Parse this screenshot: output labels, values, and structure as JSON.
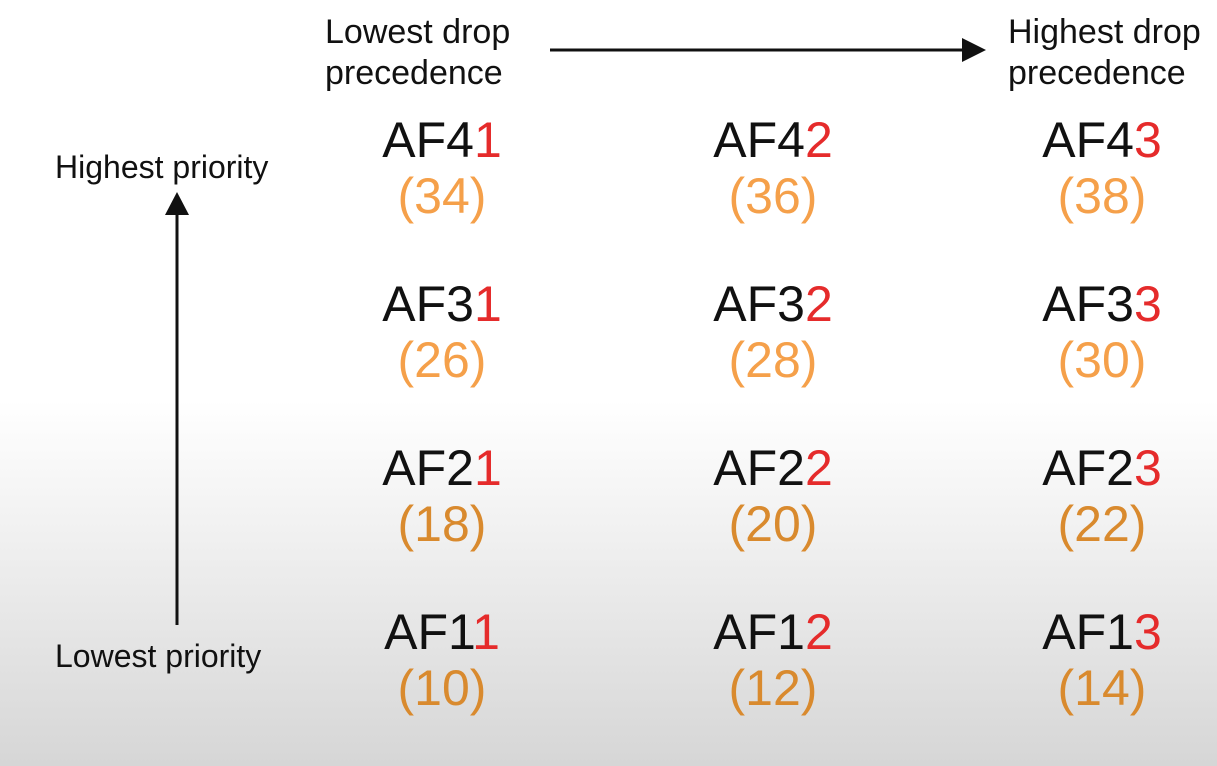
{
  "labels": {
    "lowest_drop": [
      "Lowest drop",
      "precedence"
    ],
    "highest_drop": [
      "Highest drop",
      "precedence"
    ],
    "highest_priority": "Highest priority",
    "lowest_priority": "Lowest priority"
  },
  "colors": {
    "text": "#111111",
    "drop_digit": "#e52b2b",
    "code_top": "#f5a04a",
    "code_bottom": "#d98a2e"
  },
  "grid": [
    [
      {
        "prefix": "AF4",
        "drop": "1",
        "code": "(34)"
      },
      {
        "prefix": "AF4",
        "drop": "2",
        "code": "(36)"
      },
      {
        "prefix": "AF4",
        "drop": "3",
        "code": "(38)"
      }
    ],
    [
      {
        "prefix": "AF3",
        "drop": "1",
        "code": "(26)"
      },
      {
        "prefix": "AF3",
        "drop": "2",
        "code": "(28)"
      },
      {
        "prefix": "AF3",
        "drop": "3",
        "code": "(30)"
      }
    ],
    [
      {
        "prefix": "AF2",
        "drop": "1",
        "code": "(18)"
      },
      {
        "prefix": "AF2",
        "drop": "2",
        "code": "(20)"
      },
      {
        "prefix": "AF2",
        "drop": "3",
        "code": "(22)"
      }
    ],
    [
      {
        "prefix": "AF1",
        "drop": "1",
        "code": "(10)"
      },
      {
        "prefix": "AF1",
        "drop": "2",
        "code": "(12)"
      },
      {
        "prefix": "AF1",
        "drop": "3",
        "code": "(14)"
      }
    ]
  ]
}
